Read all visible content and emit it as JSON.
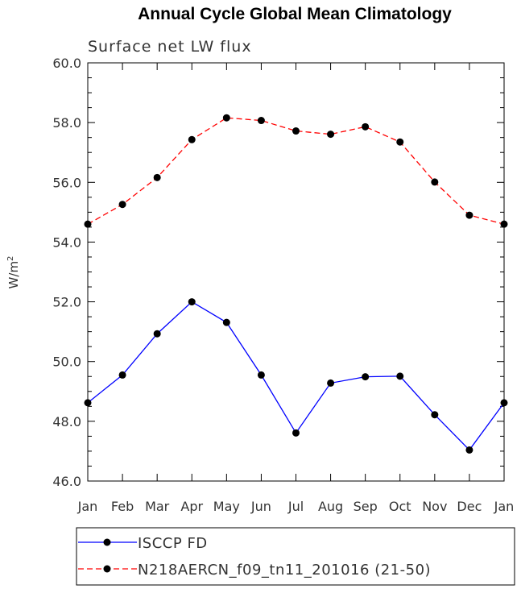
{
  "chart_data": {
    "type": "line",
    "title": "Annual Cycle Global Mean Climatology",
    "subtitle": "Surface net LW flux",
    "ylabel": "W/m",
    "ylabel_sup": "2",
    "xlabel": "",
    "categories": [
      "Jan",
      "Feb",
      "Mar",
      "Apr",
      "May",
      "Jun",
      "Jul",
      "Aug",
      "Sep",
      "Oct",
      "Nov",
      "Dec",
      "Jan"
    ],
    "ylim": [
      46.0,
      60.0
    ],
    "yticks": [
      "46.0",
      "48.0",
      "50.0",
      "52.0",
      "54.0",
      "56.0",
      "58.0",
      "60.0"
    ],
    "grid": false,
    "legend_position": "bottom",
    "series": [
      {
        "name": "ISCCP FD",
        "color": "#0000ff",
        "line_style": "solid",
        "marker": "filled-circle",
        "values": [
          48.62,
          49.55,
          50.93,
          52.0,
          51.31,
          49.55,
          47.61,
          49.28,
          49.49,
          49.51,
          48.22,
          47.04,
          48.62
        ]
      },
      {
        "name": "N218AERCN_f09_tn11_201016 (21-50)",
        "color": "#ff0000",
        "line_style": "dashed",
        "marker": "filled-circle",
        "values": [
          54.6,
          55.26,
          56.16,
          57.43,
          58.16,
          58.07,
          57.72,
          57.61,
          57.86,
          57.35,
          56.01,
          54.9,
          54.6
        ]
      }
    ]
  }
}
